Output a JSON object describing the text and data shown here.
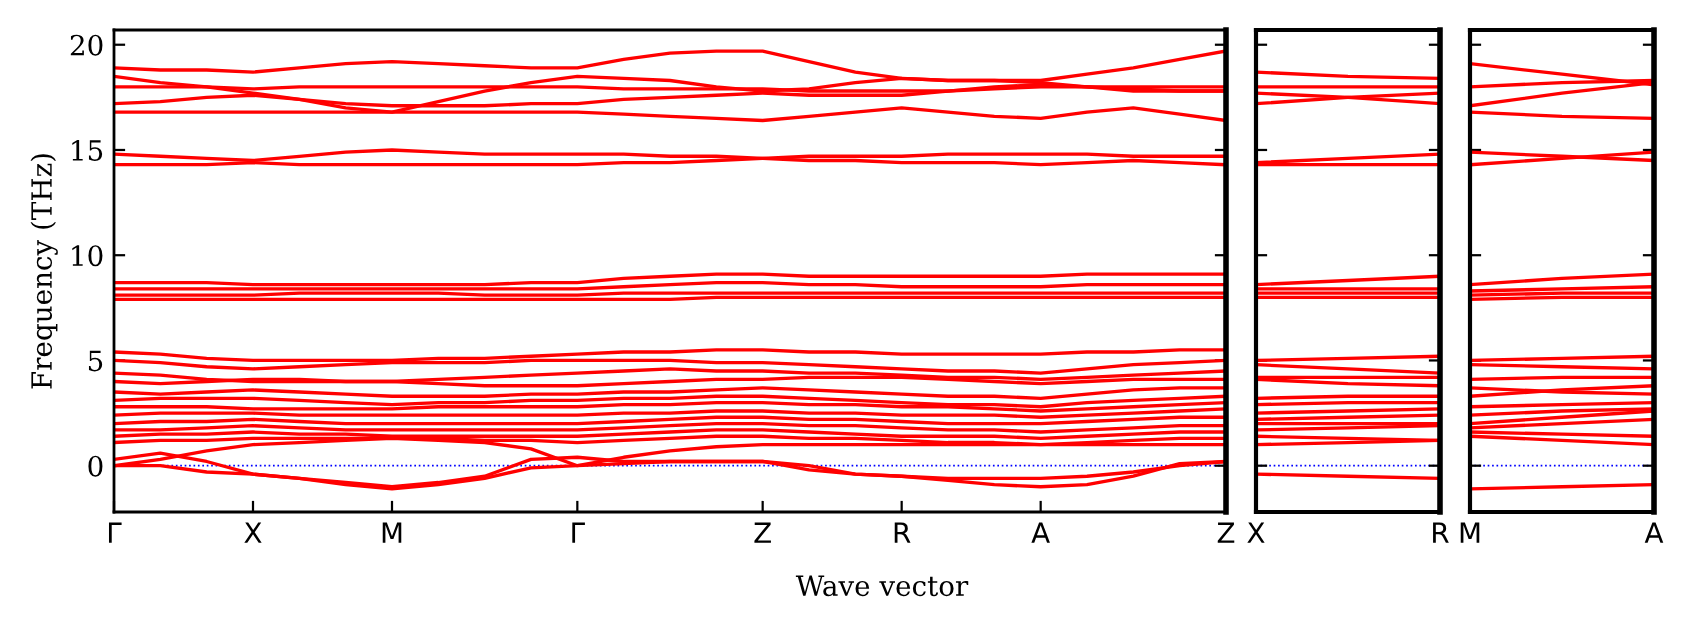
{
  "chart_data": [
    {
      "type": "line",
      "ylabel": "Frequency (THz)",
      "xlabel": "Wave vector",
      "categories": [
        "Γ",
        null,
        null,
        "X",
        null,
        null,
        "M",
        null,
        null,
        null,
        "Γ",
        null,
        null,
        null,
        "Z",
        null,
        null,
        "R",
        null,
        null,
        "A",
        null,
        null,
        null,
        "Z"
      ],
      "ylim": [
        -2.2,
        20.7
      ],
      "yticks": [
        0,
        5,
        10,
        15,
        20
      ],
      "ref_lines": [
        {
          "axis": "y",
          "value": 0,
          "color": "#0000ff",
          "line_style": "dotted"
        }
      ],
      "series": [
        {
          "color": "#ff0000",
          "values": [
            18.9,
            18.8,
            18.8,
            18.7,
            18.9,
            19.1,
            19.2,
            19.1,
            19.0,
            18.9,
            18.9,
            19.3,
            19.6,
            19.7,
            19.7,
            19.2,
            18.7,
            18.4,
            18.3,
            18.3,
            18.3,
            18.6,
            18.9,
            19.3,
            19.7
          ]
        },
        {
          "color": "#ff0000",
          "values": [
            18.5,
            18.2,
            18.0,
            17.7,
            17.4,
            17.0,
            16.8,
            17.3,
            17.8,
            18.2,
            18.5,
            18.4,
            18.3,
            18.0,
            17.8,
            17.9,
            18.2,
            18.4,
            18.3,
            18.3,
            18.2,
            18.0,
            17.8,
            17.8,
            17.8
          ]
        },
        {
          "color": "#ff0000",
          "values": [
            18.0,
            18.0,
            18.0,
            17.9,
            18.0,
            18.0,
            18.0,
            18.0,
            18.0,
            18.0,
            18.0,
            17.9,
            17.9,
            17.9,
            17.9,
            17.8,
            17.8,
            17.8,
            17.8,
            17.9,
            18.0,
            18.0,
            18.0,
            18.0,
            18.0
          ]
        },
        {
          "color": "#ff0000",
          "values": [
            17.2,
            17.3,
            17.5,
            17.6,
            17.4,
            17.2,
            17.1,
            17.1,
            17.1,
            17.2,
            17.2,
            17.4,
            17.5,
            17.6,
            17.7,
            17.6,
            17.6,
            17.6,
            17.8,
            18.0,
            18.1,
            18.0,
            17.9,
            17.8,
            17.8
          ]
        },
        {
          "color": "#ff0000",
          "values": [
            16.8,
            16.8,
            16.8,
            16.8,
            16.8,
            16.8,
            16.8,
            16.8,
            16.8,
            16.8,
            16.8,
            16.7,
            16.6,
            16.5,
            16.4,
            16.6,
            16.8,
            17.0,
            16.8,
            16.6,
            16.5,
            16.8,
            17.0,
            16.7,
            16.4
          ]
        },
        {
          "color": "#ff0000",
          "values": [
            14.8,
            14.7,
            14.6,
            14.5,
            14.7,
            14.9,
            15.0,
            14.9,
            14.8,
            14.8,
            14.8,
            14.8,
            14.7,
            14.7,
            14.6,
            14.7,
            14.7,
            14.7,
            14.8,
            14.8,
            14.8,
            14.8,
            14.7,
            14.7,
            14.7
          ]
        },
        {
          "color": "#ff0000",
          "values": [
            14.3,
            14.3,
            14.3,
            14.4,
            14.3,
            14.3,
            14.3,
            14.3,
            14.3,
            14.3,
            14.3,
            14.4,
            14.4,
            14.5,
            14.6,
            14.5,
            14.5,
            14.4,
            14.4,
            14.4,
            14.3,
            14.4,
            14.5,
            14.4,
            14.3
          ]
        },
        {
          "color": "#ff0000",
          "values": [
            8.7,
            8.7,
            8.7,
            8.6,
            8.6,
            8.6,
            8.6,
            8.6,
            8.6,
            8.7,
            8.7,
            8.9,
            9.0,
            9.1,
            9.1,
            9.0,
            9.0,
            9.0,
            9.0,
            9.0,
            9.0,
            9.1,
            9.1,
            9.1,
            9.1
          ]
        },
        {
          "color": "#ff0000",
          "values": [
            8.4,
            8.4,
            8.4,
            8.4,
            8.4,
            8.4,
            8.4,
            8.4,
            8.4,
            8.4,
            8.4,
            8.5,
            8.6,
            8.7,
            8.7,
            8.6,
            8.6,
            8.5,
            8.5,
            8.5,
            8.5,
            8.6,
            8.6,
            8.6,
            8.6
          ]
        },
        {
          "color": "#ff0000",
          "values": [
            8.1,
            8.1,
            8.1,
            8.1,
            8.2,
            8.2,
            8.2,
            8.2,
            8.1,
            8.1,
            8.1,
            8.2,
            8.2,
            8.2,
            8.2,
            8.2,
            8.2,
            8.2,
            8.2,
            8.2,
            8.2,
            8.2,
            8.2,
            8.2,
            8.2
          ]
        },
        {
          "color": "#ff0000",
          "values": [
            7.9,
            7.9,
            7.9,
            7.9,
            7.9,
            7.9,
            7.9,
            7.9,
            7.9,
            7.9,
            7.9,
            7.9,
            7.9,
            8.0,
            8.0,
            8.0,
            8.0,
            8.0,
            8.0,
            8.0,
            8.0,
            8.0,
            8.0,
            8.0,
            8.0
          ]
        },
        {
          "color": "#ff0000",
          "values": [
            5.4,
            5.3,
            5.1,
            5.0,
            5.0,
            5.0,
            5.0,
            5.1,
            5.1,
            5.2,
            5.3,
            5.4,
            5.4,
            5.5,
            5.5,
            5.4,
            5.4,
            5.3,
            5.3,
            5.3,
            5.3,
            5.4,
            5.4,
            5.5,
            5.5
          ]
        },
        {
          "color": "#ff0000",
          "values": [
            5.0,
            4.9,
            4.7,
            4.6,
            4.7,
            4.8,
            4.9,
            4.9,
            4.9,
            5.0,
            5.0,
            5.0,
            5.0,
            4.9,
            4.9,
            4.8,
            4.7,
            4.6,
            4.5,
            4.5,
            4.4,
            4.6,
            4.8,
            4.9,
            5.0
          ]
        },
        {
          "color": "#ff0000",
          "values": [
            4.4,
            4.3,
            4.1,
            4.0,
            4.0,
            4.0,
            4.0,
            4.1,
            4.2,
            4.3,
            4.4,
            4.5,
            4.6,
            4.5,
            4.5,
            4.4,
            4.4,
            4.3,
            4.2,
            4.2,
            4.1,
            4.2,
            4.3,
            4.4,
            4.5
          ]
        },
        {
          "color": "#ff0000",
          "values": [
            4.0,
            3.9,
            4.0,
            4.1,
            4.1,
            4.0,
            4.0,
            3.9,
            3.8,
            3.8,
            3.8,
            3.9,
            4.0,
            4.1,
            4.1,
            4.2,
            4.2,
            4.2,
            4.1,
            4.0,
            3.9,
            4.0,
            4.1,
            4.1,
            4.1
          ]
        },
        {
          "color": "#ff0000",
          "values": [
            3.5,
            3.4,
            3.5,
            3.6,
            3.5,
            3.4,
            3.3,
            3.3,
            3.3,
            3.4,
            3.4,
            3.5,
            3.5,
            3.6,
            3.7,
            3.6,
            3.5,
            3.4,
            3.3,
            3.3,
            3.2,
            3.4,
            3.6,
            3.7,
            3.7
          ]
        },
        {
          "color": "#ff0000",
          "values": [
            3.1,
            3.2,
            3.2,
            3.2,
            3.1,
            3.0,
            2.9,
            3.0,
            3.0,
            3.1,
            3.1,
            3.2,
            3.2,
            3.3,
            3.3,
            3.2,
            3.1,
            3.0,
            2.9,
            2.9,
            2.8,
            3.0,
            3.1,
            3.2,
            3.3
          ]
        },
        {
          "color": "#ff0000",
          "values": [
            2.8,
            2.8,
            2.8,
            2.7,
            2.7,
            2.7,
            2.7,
            2.8,
            2.8,
            2.8,
            2.8,
            2.9,
            2.9,
            3.0,
            3.0,
            2.9,
            2.9,
            2.8,
            2.8,
            2.7,
            2.6,
            2.7,
            2.8,
            2.9,
            3.0
          ]
        },
        {
          "color": "#ff0000",
          "values": [
            2.4,
            2.5,
            2.5,
            2.5,
            2.4,
            2.4,
            2.4,
            2.4,
            2.4,
            2.4,
            2.4,
            2.5,
            2.5,
            2.6,
            2.6,
            2.5,
            2.5,
            2.4,
            2.4,
            2.4,
            2.3,
            2.4,
            2.5,
            2.6,
            2.7
          ]
        },
        {
          "color": "#ff0000",
          "values": [
            2.0,
            2.1,
            2.1,
            2.2,
            2.1,
            2.0,
            2.0,
            2.0,
            2.0,
            2.0,
            2.0,
            2.1,
            2.2,
            2.3,
            2.3,
            2.2,
            2.2,
            2.1,
            2.0,
            2.0,
            2.0,
            2.1,
            2.2,
            2.3,
            2.3
          ]
        },
        {
          "color": "#ff0000",
          "values": [
            1.7,
            1.7,
            1.8,
            1.9,
            1.8,
            1.7,
            1.7,
            1.7,
            1.7,
            1.7,
            1.7,
            1.8,
            1.9,
            2.0,
            2.0,
            1.9,
            1.9,
            1.8,
            1.7,
            1.7,
            1.6,
            1.7,
            1.8,
            1.9,
            1.9
          ]
        },
        {
          "color": "#ff0000",
          "values": [
            1.4,
            1.5,
            1.5,
            1.6,
            1.5,
            1.5,
            1.4,
            1.4,
            1.4,
            1.4,
            1.4,
            1.5,
            1.6,
            1.7,
            1.7,
            1.6,
            1.5,
            1.4,
            1.4,
            1.4,
            1.3,
            1.4,
            1.5,
            1.6,
            1.6
          ]
        },
        {
          "color": "#ff0000",
          "values": [
            1.1,
            1.2,
            1.2,
            1.3,
            1.3,
            1.3,
            1.3,
            1.3,
            1.2,
            1.2,
            1.1,
            1.2,
            1.3,
            1.4,
            1.4,
            1.3,
            1.3,
            1.2,
            1.1,
            1.1,
            1.0,
            1.1,
            1.2,
            1.3,
            1.3
          ]
        },
        {
          "color": "#ff0000",
          "values": [
            0.0,
            0.3,
            0.7,
            1.0,
            1.1,
            1.2,
            1.3,
            1.2,
            1.1,
            0.8,
            0.0,
            0.4,
            0.7,
            0.9,
            1.0,
            1.0,
            1.0,
            1.0,
            1.0,
            1.0,
            1.0,
            1.0,
            1.0,
            1.0,
            1.0
          ]
        },
        {
          "color": "#ff0000",
          "values": [
            0.3,
            0.6,
            0.2,
            -0.4,
            -0.6,
            -0.8,
            -1.0,
            -0.8,
            -0.5,
            0.3,
            0.4,
            0.2,
            0.2,
            0.2,
            0.2,
            0.0,
            -0.4,
            -0.5,
            -0.6,
            -0.6,
            -0.6,
            -0.5,
            -0.3,
            0.0,
            0.2
          ]
        },
        {
          "color": "#ff0000",
          "values": [
            0.0,
            0.0,
            -0.3,
            -0.4,
            -0.6,
            -0.9,
            -1.1,
            -0.9,
            -0.6,
            -0.1,
            0.0,
            0.1,
            0.2,
            0.2,
            0.2,
            -0.2,
            -0.4,
            -0.5,
            -0.7,
            -0.9,
            -1.0,
            -0.9,
            -0.5,
            0.1,
            0.2
          ]
        }
      ]
    },
    {
      "type": "line",
      "categories": [
        "X",
        null,
        "R"
      ],
      "ylim": [
        -2.2,
        20.7
      ],
      "yticks": [
        0,
        5,
        10,
        15,
        20
      ],
      "tick_labels": "x",
      "ref_lines": [
        {
          "axis": "y",
          "value": 0,
          "color": "#0000ff",
          "line_style": "dotted"
        }
      ],
      "series": [
        {
          "color": "#ff0000",
          "values": [
            18.7,
            18.5,
            18.4
          ]
        },
        {
          "color": "#ff0000",
          "values": [
            18.0,
            18.0,
            18.0
          ]
        },
        {
          "color": "#ff0000",
          "values": [
            17.7,
            17.5,
            17.2
          ]
        },
        {
          "color": "#ff0000",
          "values": [
            17.2,
            17.5,
            17.7
          ]
        },
        {
          "color": "#ff0000",
          "values": [
            14.4,
            14.6,
            14.8
          ]
        },
        {
          "color": "#ff0000",
          "values": [
            14.3,
            14.3,
            14.3
          ]
        },
        {
          "color": "#ff0000",
          "values": [
            8.6,
            8.8,
            9.0
          ]
        },
        {
          "color": "#ff0000",
          "values": [
            8.4,
            8.4,
            8.4
          ]
        },
        {
          "color": "#ff0000",
          "values": [
            8.2,
            8.2,
            8.2
          ]
        },
        {
          "color": "#ff0000",
          "values": [
            8.0,
            8.0,
            8.0
          ]
        },
        {
          "color": "#ff0000",
          "values": [
            5.0,
            5.1,
            5.2
          ]
        },
        {
          "color": "#ff0000",
          "values": [
            4.8,
            4.6,
            4.4
          ]
        },
        {
          "color": "#ff0000",
          "values": [
            4.2,
            4.2,
            4.2
          ]
        },
        {
          "color": "#ff0000",
          "values": [
            4.1,
            3.9,
            3.8
          ]
        },
        {
          "color": "#ff0000",
          "values": [
            3.2,
            3.3,
            3.3
          ]
        },
        {
          "color": "#ff0000",
          "values": [
            2.9,
            3.0,
            3.0
          ]
        },
        {
          "color": "#ff0000",
          "values": [
            2.5,
            2.6,
            2.7
          ]
        },
        {
          "color": "#ff0000",
          "values": [
            2.2,
            2.3,
            2.4
          ]
        },
        {
          "color": "#ff0000",
          "values": [
            2.0,
            2.0,
            2.0
          ]
        },
        {
          "color": "#ff0000",
          "values": [
            1.7,
            1.8,
            1.9
          ]
        },
        {
          "color": "#ff0000",
          "values": [
            1.4,
            1.3,
            1.2
          ]
        },
        {
          "color": "#ff0000",
          "values": [
            1.0,
            1.1,
            1.2
          ]
        },
        {
          "color": "#ff0000",
          "values": [
            -0.4,
            -0.5,
            -0.6
          ]
        }
      ]
    },
    {
      "type": "line",
      "categories": [
        "M",
        null,
        "A"
      ],
      "ylim": [
        -2.2,
        20.7
      ],
      "yticks": [
        0,
        5,
        10,
        15,
        20
      ],
      "tick_labels": "x",
      "ref_lines": [
        {
          "axis": "y",
          "value": 0,
          "color": "#0000ff",
          "line_style": "dotted"
        }
      ],
      "series": [
        {
          "color": "#ff0000",
          "values": [
            19.1,
            18.6,
            18.1
          ]
        },
        {
          "color": "#ff0000",
          "values": [
            18.0,
            18.2,
            18.3
          ]
        },
        {
          "color": "#ff0000",
          "values": [
            17.1,
            17.7,
            18.2
          ]
        },
        {
          "color": "#ff0000",
          "values": [
            16.8,
            16.6,
            16.5
          ]
        },
        {
          "color": "#ff0000",
          "values": [
            14.9,
            14.7,
            14.5
          ]
        },
        {
          "color": "#ff0000",
          "values": [
            14.3,
            14.6,
            14.9
          ]
        },
        {
          "color": "#ff0000",
          "values": [
            8.6,
            8.9,
            9.1
          ]
        },
        {
          "color": "#ff0000",
          "values": [
            8.3,
            8.4,
            8.5
          ]
        },
        {
          "color": "#ff0000",
          "values": [
            8.1,
            8.2,
            8.2
          ]
        },
        {
          "color": "#ff0000",
          "values": [
            7.9,
            8.0,
            8.0
          ]
        },
        {
          "color": "#ff0000",
          "values": [
            5.0,
            5.1,
            5.2
          ]
        },
        {
          "color": "#ff0000",
          "values": [
            4.8,
            4.7,
            4.6
          ]
        },
        {
          "color": "#ff0000",
          "values": [
            4.1,
            4.2,
            4.2
          ]
        },
        {
          "color": "#ff0000",
          "values": [
            3.7,
            3.5,
            3.4
          ]
        },
        {
          "color": "#ff0000",
          "values": [
            3.3,
            3.6,
            3.8
          ]
        },
        {
          "color": "#ff0000",
          "values": [
            2.8,
            2.9,
            3.0
          ]
        },
        {
          "color": "#ff0000",
          "values": [
            2.4,
            2.6,
            2.7
          ]
        },
        {
          "color": "#ff0000",
          "values": [
            2.0,
            2.3,
            2.6
          ]
        },
        {
          "color": "#ff0000",
          "values": [
            1.8,
            2.0,
            2.2
          ]
        },
        {
          "color": "#ff0000",
          "values": [
            1.6,
            1.5,
            1.4
          ]
        },
        {
          "color": "#ff0000",
          "values": [
            1.4,
            1.2,
            1.0
          ]
        },
        {
          "color": "#ff0000",
          "values": [
            -1.1,
            -1.0,
            -0.9
          ]
        }
      ]
    }
  ]
}
